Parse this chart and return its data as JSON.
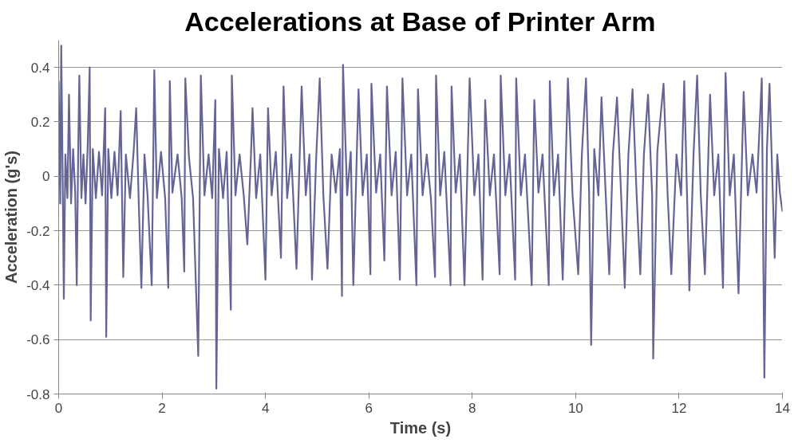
{
  "chart_data": {
    "type": "line",
    "title": "Accelerations at Base of Printer Arm",
    "xlabel": "Time (s)",
    "ylabel": "Acceleration (g's)",
    "xlim": [
      0,
      14
    ],
    "xticks": [
      0,
      2,
      4,
      6,
      8,
      10,
      12,
      14
    ],
    "ylim": [
      -0.8,
      0.5
    ],
    "yticks": [
      -0.8,
      -0.6,
      -0.4,
      -0.2,
      0,
      0.2,
      0.4
    ],
    "grid": "y",
    "marker": "none",
    "line_style": "solid",
    "series": [
      {
        "color": "#646496",
        "x": [
          0.0,
          0.03,
          0.05,
          0.08,
          0.1,
          0.13,
          0.17,
          0.2,
          0.24,
          0.28,
          0.32,
          0.35,
          0.38,
          0.4,
          0.44,
          0.48,
          0.52,
          0.56,
          0.6,
          0.62,
          0.66,
          0.72,
          0.78,
          0.84,
          0.9,
          0.92,
          0.96,
          1.02,
          1.08,
          1.14,
          1.2,
          1.25,
          1.3,
          1.38,
          1.45,
          1.5,
          1.55,
          1.6,
          1.66,
          1.72,
          1.8,
          1.85,
          1.9,
          1.98,
          2.06,
          2.12,
          2.15,
          2.2,
          2.3,
          2.38,
          2.43,
          2.45,
          2.52,
          2.6,
          2.7,
          2.75,
          2.82,
          2.9,
          2.97,
          3.03,
          3.05,
          3.1,
          3.18,
          3.25,
          3.33,
          3.35,
          3.42,
          3.5,
          3.58,
          3.65,
          3.72,
          3.75,
          3.82,
          3.9,
          4.0,
          4.05,
          4.12,
          4.2,
          4.3,
          4.35,
          4.42,
          4.5,
          4.6,
          4.7,
          4.78,
          4.85,
          4.9,
          4.98,
          5.05,
          5.12,
          5.2,
          5.28,
          5.36,
          5.44,
          5.48,
          5.5,
          5.58,
          5.65,
          5.7,
          5.8,
          5.88,
          5.96,
          6.03,
          6.05,
          6.14,
          6.22,
          6.3,
          6.35,
          6.44,
          6.52,
          6.6,
          6.65,
          6.74,
          6.82,
          6.92,
          6.95,
          7.04,
          7.12,
          7.2,
          7.28,
          7.3,
          7.38,
          7.46,
          7.58,
          7.6,
          7.68,
          7.76,
          7.85,
          7.95,
          8.04,
          8.12,
          8.2,
          8.25,
          8.34,
          8.42,
          8.53,
          8.55,
          8.64,
          8.72,
          8.83,
          8.85,
          8.94,
          9.02,
          9.15,
          9.2,
          9.28,
          9.36,
          9.48,
          9.5,
          9.58,
          9.66,
          9.75,
          9.85,
          9.94,
          10.05,
          10.12,
          10.2,
          10.26,
          10.3,
          10.36,
          10.44,
          10.5,
          10.58,
          10.65,
          10.72,
          10.8,
          10.88,
          10.95,
          11.02,
          11.1,
          11.18,
          11.25,
          11.32,
          11.4,
          11.48,
          11.5,
          11.58,
          11.7,
          11.78,
          11.85,
          11.95,
          12.04,
          12.1,
          12.2,
          12.28,
          12.35,
          12.42,
          12.5,
          12.6,
          12.68,
          12.76,
          12.85,
          12.9,
          12.98,
          13.06,
          13.15,
          13.25,
          13.33,
          13.42,
          13.5,
          13.6,
          13.65,
          13.7,
          13.75,
          13.85,
          13.9,
          13.95,
          14.0
        ],
        "values": [
          0.35,
          -0.1,
          0.48,
          -0.05,
          -0.45,
          0.08,
          -0.08,
          0.3,
          -0.1,
          0.1,
          -0.06,
          -0.4,
          0.12,
          0.37,
          -0.08,
          0.08,
          -0.1,
          0.1,
          0.4,
          -0.53,
          0.1,
          -0.08,
          0.09,
          -0.07,
          0.25,
          -0.59,
          0.1,
          -0.08,
          0.09,
          -0.07,
          0.24,
          -0.37,
          0.08,
          -0.08,
          0.09,
          0.25,
          -0.1,
          -0.41,
          0.08,
          -0.07,
          -0.4,
          0.39,
          -0.08,
          0.09,
          -0.08,
          -0.41,
          0.35,
          -0.06,
          0.08,
          -0.08,
          -0.35,
          0.36,
          0.07,
          -0.08,
          -0.66,
          0.37,
          -0.07,
          0.08,
          -0.08,
          0.28,
          -0.78,
          0.1,
          -0.08,
          0.09,
          -0.49,
          0.37,
          -0.07,
          0.08,
          -0.07,
          -0.25,
          0.08,
          0.25,
          -0.08,
          0.08,
          -0.38,
          0.25,
          -0.07,
          0.09,
          -0.3,
          0.33,
          -0.08,
          0.08,
          -0.34,
          0.33,
          -0.07,
          0.08,
          -0.38,
          0.06,
          0.36,
          -0.07,
          -0.34,
          0.08,
          -0.06,
          0.1,
          -0.44,
          0.41,
          -0.07,
          0.09,
          -0.4,
          0.32,
          -0.07,
          0.08,
          -0.36,
          0.34,
          -0.06,
          0.08,
          -0.31,
          0.33,
          -0.07,
          0.09,
          -0.38,
          0.36,
          -0.07,
          0.08,
          -0.4,
          0.32,
          -0.07,
          0.08,
          -0.08,
          -0.37,
          0.37,
          -0.07,
          0.09,
          -0.4,
          0.33,
          -0.06,
          0.08,
          -0.4,
          0.36,
          -0.07,
          0.08,
          -0.38,
          0.28,
          -0.07,
          0.08,
          -0.36,
          0.37,
          -0.07,
          0.08,
          -0.38,
          0.36,
          -0.07,
          0.08,
          -0.4,
          0.28,
          -0.06,
          0.08,
          -0.4,
          0.35,
          -0.07,
          0.08,
          -0.38,
          0.36,
          -0.07,
          -0.36,
          0.08,
          0.36,
          -0.06,
          -0.62,
          0.1,
          -0.07,
          0.29,
          -0.06,
          -0.36,
          0.08,
          0.29,
          -0.07,
          -0.41,
          0.08,
          0.32,
          -0.07,
          -0.36,
          0.08,
          0.3,
          -0.07,
          -0.67,
          0.09,
          0.34,
          -0.07,
          -0.36,
          0.08,
          -0.07,
          0.35,
          -0.42,
          0.08,
          0.37,
          -0.07,
          -0.36,
          0.3,
          -0.07,
          0.08,
          -0.41,
          0.38,
          -0.07,
          0.08,
          -0.43,
          0.31,
          -0.07,
          0.08,
          -0.06,
          0.36,
          -0.74,
          0.1,
          0.34,
          -0.3,
          0.08,
          -0.06,
          -0.13
        ]
      }
    ]
  }
}
